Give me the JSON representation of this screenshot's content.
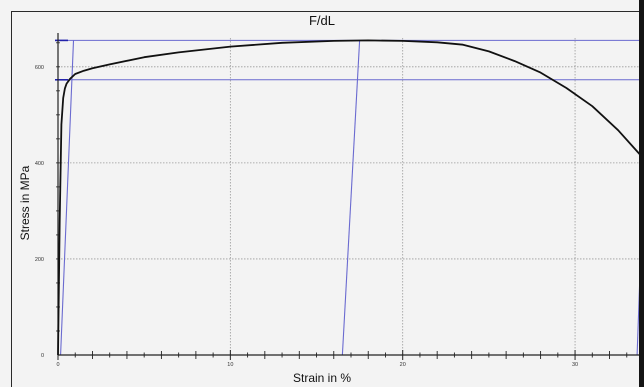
{
  "chart_data": {
    "type": "line",
    "title": "F/dL",
    "xlabel": "Strain in %",
    "ylabel": "Stress in MPa",
    "xlim": [
      0,
      34
    ],
    "ylim": [
      0,
      660
    ],
    "x_ticks": [
      0,
      10,
      20,
      30
    ],
    "x_tick_labels": [
      "0",
      "10",
      "20",
      "30"
    ],
    "y_ticks": [
      0,
      200,
      400,
      600
    ],
    "y_tick_labels": [
      "0",
      "200",
      "400",
      "600"
    ],
    "grid": true,
    "series": [
      {
        "x": [
          0,
          0.1,
          0.2,
          0.3,
          0.4,
          0.5,
          0.7,
          1,
          1.5,
          2,
          3,
          5,
          7,
          10,
          13,
          16,
          18,
          20,
          22,
          23.5,
          25,
          26.5,
          28,
          29.5,
          31,
          32.5,
          34
        ],
        "y": [
          0,
          280,
          480,
          535,
          555,
          565,
          575,
          585,
          592,
          597,
          605,
          620,
          630,
          642,
          650,
          654,
          655,
          654,
          651,
          646,
          632,
          612,
          588,
          556,
          518,
          468,
          408
        ]
      }
    ],
    "reference_lines": [
      {
        "kind": "horizontal",
        "y": 655
      },
      {
        "kind": "horizontal",
        "y": 573
      },
      {
        "kind": "elastic",
        "x": [
          0.15,
          0.9
        ],
        "y": [
          0,
          655
        ]
      },
      {
        "kind": "elastic",
        "x": [
          16.5,
          17.5
        ],
        "y": [
          0,
          655
        ]
      },
      {
        "kind": "elastic",
        "x": [
          33.6,
          34
        ],
        "y": [
          0,
          405
        ]
      }
    ]
  }
}
